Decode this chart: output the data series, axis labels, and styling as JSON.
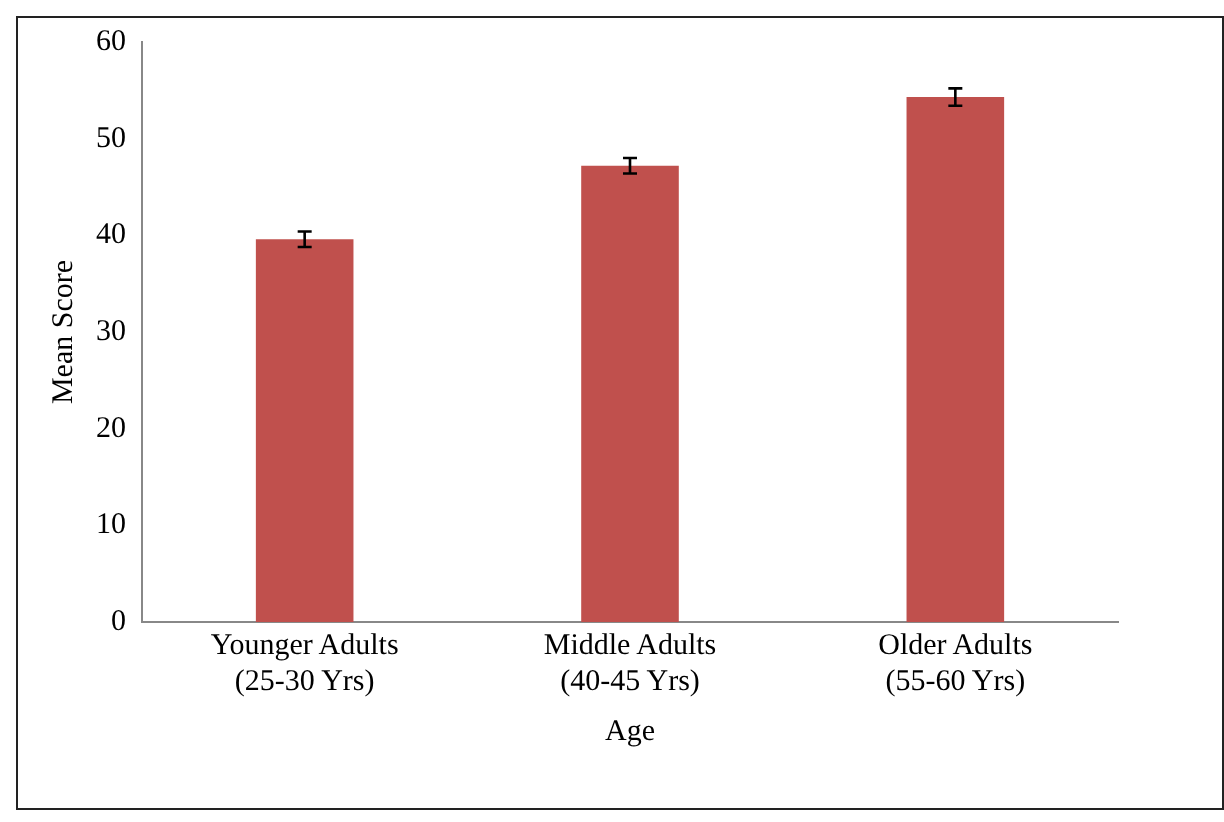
{
  "chart_data": {
    "type": "bar",
    "xlabel": "Age",
    "ylabel": "Mean Score",
    "categories": [
      "Younger Adults (25-30 Yrs)",
      "Middle Adults (40-45 Yrs)",
      "Older Adults (55-60 Yrs)"
    ],
    "values": [
      39.6,
      47.2,
      54.3
    ],
    "errors": [
      0.8,
      0.8,
      0.9
    ],
    "color": "#c0504d",
    "ylim": [
      0,
      60
    ],
    "yticks": [
      0,
      10,
      20,
      30,
      40,
      50,
      60
    ],
    "grid": false,
    "legend": false
  }
}
